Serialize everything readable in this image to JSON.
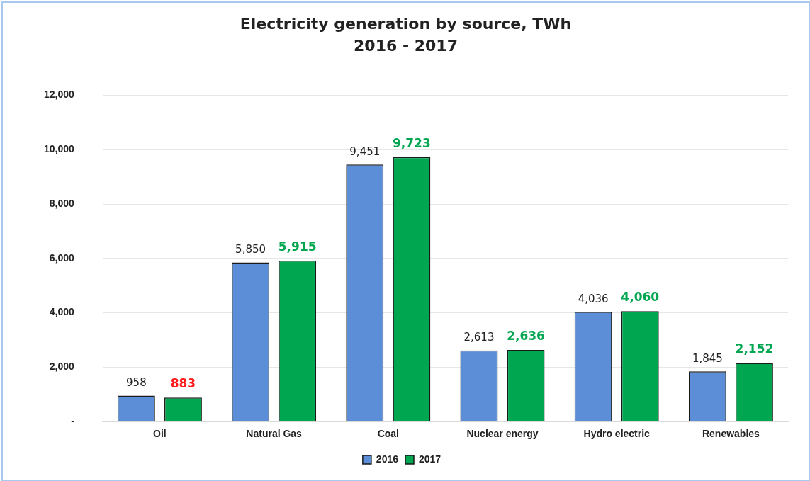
{
  "chart_data": {
    "type": "bar",
    "title": "Electricity generation by source, TWh",
    "subtitle": "2016 - 2017",
    "categories": [
      "Oil",
      "Natural Gas",
      "Coal",
      "Nuclear energy",
      "Hydro electric",
      "Renewables"
    ],
    "series": [
      {
        "name": "2016",
        "color": "#5b8ed6",
        "values": [
          958,
          5850,
          9451,
          2613,
          4036,
          1845
        ],
        "value_labels": [
          "958",
          "5,850",
          "9,451",
          "2,613",
          "4,036",
          "1,845"
        ]
      },
      {
        "name": "2017",
        "color": "#00a650",
        "values": [
          883,
          5915,
          9723,
          2636,
          4060,
          2152
        ],
        "value_labels": [
          "883",
          "5,915",
          "9,723",
          "2,636",
          "4,060",
          "2,152"
        ]
      }
    ],
    "ylim": [
      0,
      12000
    ],
    "yticks": [
      {
        "value": 0,
        "label": "-"
      },
      {
        "value": 2000,
        "label": "2,000"
      },
      {
        "value": 4000,
        "label": "4,000"
      },
      {
        "value": 6000,
        "label": "6,000"
      },
      {
        "value": 8000,
        "label": "8,000"
      },
      {
        "value": 10000,
        "label": "10,000"
      },
      {
        "value": 12000,
        "label": "12,000"
      }
    ],
    "grid": "y",
    "legend": "bottom"
  }
}
